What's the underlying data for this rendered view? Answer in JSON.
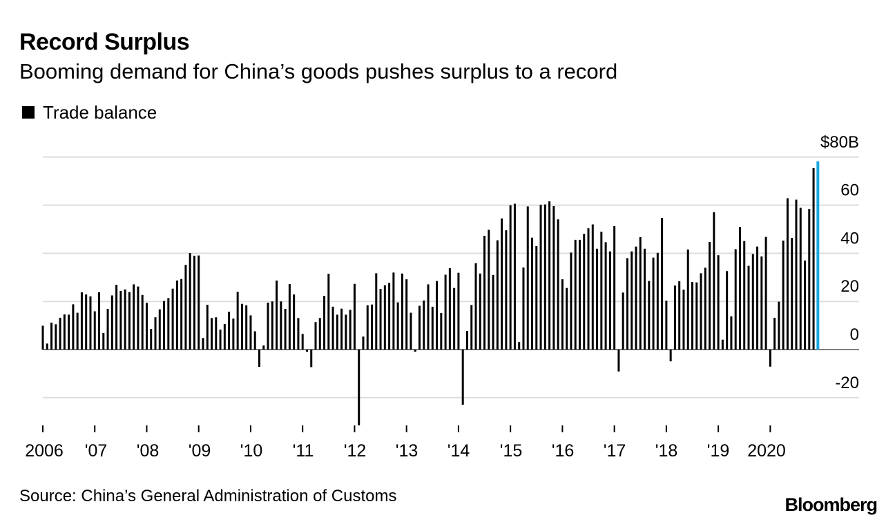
{
  "title": "Record Surplus",
  "subtitle": "Booming demand for China’s goods pushes surplus to a record",
  "source": "Source: China’s General Administration of Customs",
  "logo": "Bloomberg",
  "colors": {
    "bar": "#000000",
    "highlight": "#1aa7e0",
    "grid": "#dddddd",
    "background": "#ffffff"
  },
  "chart_data": {
    "type": "bar",
    "legend": "Trade balance",
    "legend_position": "top-left",
    "grid": true,
    "ylim": [
      -32,
      80
    ],
    "yticks": [
      {
        "value": 80,
        "label": "$80B"
      },
      {
        "value": 60,
        "label": "60"
      },
      {
        "value": 40,
        "label": "40"
      },
      {
        "value": 20,
        "label": "20"
      },
      {
        "value": 0,
        "label": "0"
      },
      {
        "value": -20,
        "label": "-20"
      }
    ],
    "xticks": [
      "2006",
      "'07",
      "'08",
      "'09",
      "'10",
      "'11",
      "'12",
      "'13",
      "'14",
      "'15",
      "'16",
      "'17",
      "'18",
      "'19",
      "2020"
    ],
    "series": [
      {
        "name": "Trade balance",
        "start": "2006-01",
        "values": [
          9.9,
          2.5,
          11.2,
          10.5,
          13.2,
          14.6,
          14.5,
          18.8,
          15.3,
          23.8,
          22.9,
          22.1,
          15.9,
          23.8,
          6.9,
          16.9,
          22.5,
          26.9,
          24.4,
          25.0,
          23.9,
          27.1,
          26.2,
          22.7,
          19.4,
          8.6,
          13.4,
          16.7,
          20.2,
          21.4,
          25.3,
          28.7,
          29.3,
          35.2,
          40.1,
          39.0,
          39.1,
          4.8,
          18.6,
          13.1,
          13.4,
          8.3,
          10.6,
          15.7,
          12.9,
          24.0,
          19.0,
          18.4,
          14.2,
          7.6,
          -7.2,
          1.7,
          19.5,
          20.0,
          28.7,
          20.0,
          16.9,
          27.2,
          22.9,
          13.1,
          6.5,
          -0.9,
          -7.3,
          11.4,
          13.1,
          22.3,
          31.5,
          17.8,
          14.5,
          17.0,
          14.5,
          16.5,
          27.3,
          -31.5,
          5.4,
          18.4,
          18.7,
          31.7,
          25.2,
          26.7,
          27.7,
          32.0,
          19.6,
          31.6,
          29.2,
          15.3,
          -0.9,
          18.2,
          20.4,
          27.1,
          17.8,
          28.5,
          15.2,
          31.1,
          33.8,
          25.6,
          31.9,
          -22.9,
          7.7,
          18.5,
          35.9,
          31.6,
          47.3,
          49.8,
          31.0,
          45.4,
          54.5,
          49.6,
          60.0,
          60.6,
          3.1,
          34.1,
          59.5,
          46.5,
          43.0,
          60.2,
          60.3,
          61.6,
          59.6,
          54.1,
          29.2,
          25.6,
          40.3,
          45.6,
          45.6,
          48.1,
          50.4,
          52.0,
          41.9,
          49.0,
          44.6,
          40.8,
          51.3,
          -9.1,
          23.7,
          38.0,
          40.8,
          42.8,
          46.7,
          41.9,
          28.5,
          38.2,
          40.2,
          54.7,
          20.3,
          -4.9,
          26.6,
          28.4,
          24.9,
          41.6,
          28.1,
          27.9,
          31.7,
          34.0,
          44.7,
          57.1,
          39.2,
          4.1,
          32.6,
          13.8,
          41.7,
          51.0,
          45.1,
          34.8,
          39.7,
          42.8,
          38.7,
          46.8,
          -7.1,
          13.2,
          19.9,
          45.3,
          62.9,
          46.4,
          62.3,
          58.9,
          37.0,
          58.4,
          75.4,
          78.2
        ]
      }
    ]
  }
}
